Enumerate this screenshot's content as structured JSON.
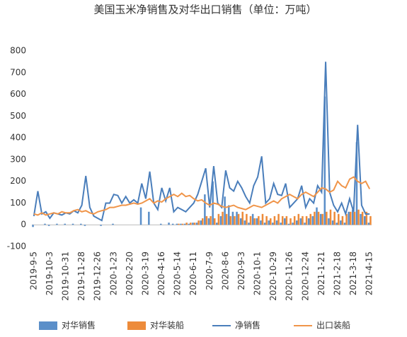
{
  "chart_data": {
    "type": "combo",
    "title": "美国玉米净销售及对华出口销售（单位：万吨）",
    "categories": [
      "2019-9-5",
      null,
      null,
      null,
      "2019-10-3",
      null,
      null,
      null,
      "2019-10-31",
      null,
      null,
      null,
      "2019-11-28",
      null,
      null,
      null,
      "2019-12-26",
      null,
      null,
      null,
      "2020-1-23",
      null,
      null,
      null,
      "2020-2-20",
      null,
      null,
      null,
      "2020-3-19",
      null,
      null,
      null,
      "2020-4-16",
      null,
      null,
      null,
      "2020-5-14",
      null,
      null,
      null,
      "2020-6-11",
      null,
      null,
      null,
      "2020-7-9",
      null,
      null,
      null,
      "2020-8-6",
      null,
      null,
      null,
      "2020-9-3",
      null,
      null,
      null,
      "2020-10-1",
      null,
      null,
      null,
      "2020-10-29",
      null,
      null,
      null,
      "2020-11-26",
      null,
      null,
      null,
      "2020-12-24",
      null,
      null,
      null,
      "2021-1-21",
      null,
      null,
      null,
      "2021-2-18",
      null,
      null,
      null,
      "2021-3-18",
      null,
      null,
      null,
      "2021-4-15"
    ],
    "series": [
      {
        "name": "对华销售",
        "kind": "bar",
        "color": "#5b8fc9",
        "values": [
          -10,
          0,
          0,
          5,
          -5,
          0,
          5,
          0,
          5,
          0,
          5,
          0,
          5,
          -5,
          0,
          0,
          0,
          -5,
          0,
          0,
          5,
          0,
          0,
          0,
          0,
          0,
          0,
          80,
          0,
          60,
          0,
          0,
          5,
          0,
          10,
          5,
          5,
          5,
          5,
          5,
          10,
          10,
          20,
          140,
          30,
          200,
          10,
          40,
          130,
          90,
          60,
          60,
          30,
          20,
          10,
          50,
          30,
          20,
          10,
          20,
          10,
          20,
          10,
          30,
          5,
          10,
          20,
          30,
          10,
          30,
          40,
          80,
          50,
          590,
          30,
          20,
          10,
          20,
          10,
          60,
          70,
          380,
          50,
          40,
          10
        ]
      },
      {
        "name": "对华装船",
        "kind": "bar",
        "color": "#ed8b3a",
        "values": [
          0,
          0,
          0,
          0,
          0,
          0,
          0,
          0,
          0,
          0,
          0,
          0,
          0,
          0,
          0,
          0,
          0,
          0,
          0,
          0,
          0,
          0,
          0,
          0,
          0,
          0,
          0,
          0,
          0,
          0,
          0,
          0,
          0,
          0,
          0,
          0,
          5,
          5,
          10,
          10,
          10,
          20,
          30,
          40,
          40,
          30,
          50,
          60,
          50,
          40,
          40,
          50,
          60,
          50,
          40,
          30,
          40,
          50,
          40,
          30,
          40,
          50,
          40,
          40,
          30,
          40,
          50,
          40,
          40,
          50,
          60,
          60,
          50,
          60,
          70,
          60,
          50,
          40,
          50,
          60,
          60,
          70,
          60,
          60,
          40
        ]
      },
      {
        "name": "净销售",
        "kind": "line",
        "color": "#4a7ebb",
        "values": [
          40,
          155,
          50,
          60,
          30,
          55,
          50,
          45,
          55,
          50,
          65,
          55,
          90,
          225,
          80,
          40,
          30,
          20,
          100,
          100,
          140,
          135,
          100,
          130,
          100,
          115,
          100,
          190,
          120,
          245,
          100,
          70,
          170,
          110,
          170,
          60,
          80,
          70,
          60,
          80,
          100,
          140,
          200,
          260,
          80,
          270,
          100,
          80,
          250,
          170,
          155,
          200,
          170,
          130,
          100,
          180,
          220,
          315,
          100,
          120,
          190,
          140,
          135,
          190,
          80,
          100,
          120,
          180,
          80,
          120,
          100,
          180,
          150,
          750,
          150,
          90,
          60,
          100,
          50,
          120,
          60,
          460,
          90,
          50,
          50
        ]
      },
      {
        "name": "出口装船",
        "kind": "line",
        "color": "#f0954a",
        "values": [
          50,
          45,
          55,
          45,
          50,
          55,
          50,
          60,
          55,
          55,
          65,
          70,
          60,
          65,
          55,
          50,
          60,
          65,
          70,
          80,
          80,
          85,
          90,
          90,
          95,
          100,
          95,
          100,
          110,
          120,
          100,
          110,
          105,
          120,
          130,
          140,
          130,
          145,
          130,
          135,
          120,
          110,
          115,
          100,
          90,
          100,
          95,
          85,
          80,
          85,
          90,
          80,
          75,
          70,
          80,
          90,
          85,
          80,
          90,
          100,
          110,
          100,
          120,
          130,
          140,
          130,
          120,
          140,
          150,
          140,
          130,
          150,
          170,
          165,
          150,
          160,
          200,
          180,
          170,
          210,
          220,
          200,
          190,
          200,
          165
        ]
      }
    ],
    "ylim": [
      -100,
      800
    ],
    "yticks": [
      -100,
      0,
      100,
      200,
      300,
      400,
      500,
      600,
      700,
      800
    ]
  }
}
